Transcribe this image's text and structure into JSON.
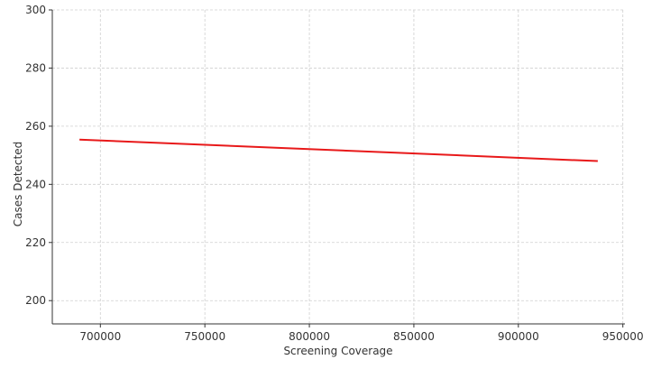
{
  "chart_data": {
    "type": "line",
    "x_label": "Screening Coverage",
    "y_label": "Cases Detected",
    "x": [
      690000,
      938000
    ],
    "series": [
      {
        "name": "Cases Detected",
        "color": "#e8191a",
        "values": [
          255.4,
          248.0
        ]
      }
    ],
    "xlim": [
      677000,
      951000
    ],
    "xticks": [
      700000,
      750000,
      800000,
      850000,
      900000,
      950000
    ],
    "ylim": [
      192,
      300
    ],
    "yticks": [
      200,
      220,
      240,
      260,
      280,
      300
    ],
    "grid": true
  }
}
